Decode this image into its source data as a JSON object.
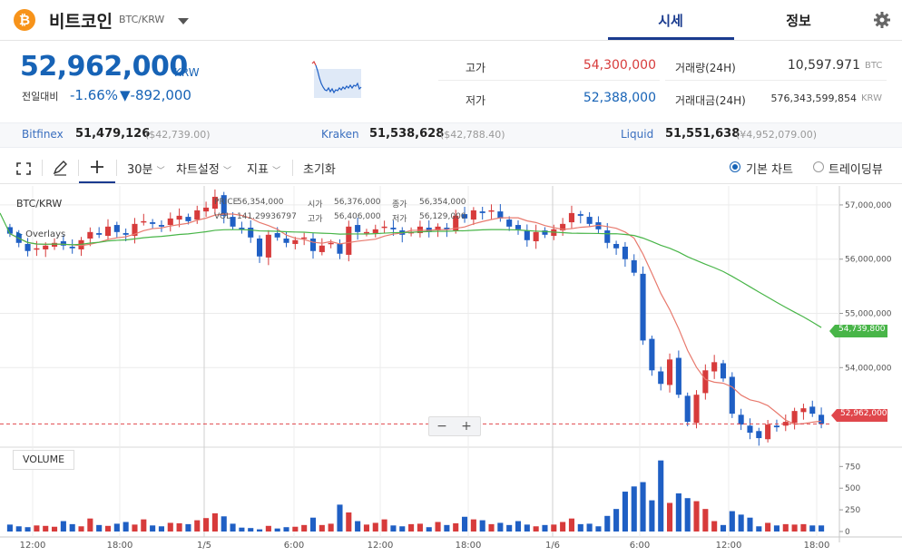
{
  "header": {
    "coin_symbol_glyph": "₿",
    "coin_name": "비트코인",
    "pair": "BTC/KRW",
    "tabs": [
      {
        "label": "시세",
        "active": true
      },
      {
        "label": "정보",
        "active": false
      }
    ]
  },
  "price": {
    "current": "52,962,000",
    "unit": "KRW",
    "change_label": "전일대비",
    "change_rate": "-1.66%",
    "change_amount": "▼-892,000"
  },
  "stats": {
    "high_label": "고가",
    "high": "54,300,000",
    "low_label": "저가",
    "low": "52,388,000",
    "volume_label": "거래량(24H)",
    "volume": "10,597.971",
    "volume_unit": "BTC",
    "value_label": "거래대금(24H)",
    "value": "576,343,599,854",
    "value_unit": "KRW"
  },
  "exchanges": [
    {
      "name": "Bitfinex",
      "price": "51,479,126",
      "sub": "($42,739.00)"
    },
    {
      "name": "Kraken",
      "price": "51,538,628",
      "sub": "($42,788.40)"
    },
    {
      "name": "Liquid",
      "price": "51,551,638",
      "sub": "(¥4,952,079.00)"
    }
  ],
  "toolbar": {
    "interval": "30분",
    "chart_settings": "차트설정",
    "indicators": "지표",
    "reset": "초기화",
    "basic_chart": "기본 차트",
    "tradingview": "트레이딩뷰"
  },
  "chart": {
    "symbol": "BTC/KRW",
    "overlays_label": "Overlays",
    "tooltip": {
      "price_label": "PRICE",
      "price": "56,354,000",
      "vol_label": "VOL",
      "vol": "141.29936797",
      "open_label": "시가",
      "open": "56,376,000",
      "close_label": "종가",
      "close": "56,354,000",
      "high_label": "고가",
      "high": "56,406,000",
      "low_label": "저가",
      "low": "56,129,000"
    },
    "volume_label": "VOLUME",
    "ma_long_value": "54,739,800",
    "last_price_value": "52,962,000",
    "zoom_out": "−",
    "zoom_in": "+"
  },
  "colors": {
    "up": "#d73b3b",
    "down": "#1f5fc4",
    "ma_short": "#e87a6e",
    "ma_long": "#48b548",
    "accent": "#1763b6"
  },
  "chart_data": {
    "type": "candlestick",
    "price_axis": {
      "ticks": [
        54000000,
        55000000,
        56000000,
        57000000
      ],
      "tick_labels": [
        "54,000,000",
        "55,000,000",
        "56,000,000",
        "57,000,000"
      ],
      "ylim": [
        52550000,
        57350000
      ]
    },
    "volume_axis": {
      "ticks": [
        0,
        250,
        500,
        750
      ],
      "tick_labels": [
        "0",
        "250",
        "500",
        "750"
      ],
      "ylim": [
        0,
        900
      ]
    },
    "x_tick_labels": [
      "12:00",
      "18:00",
      "1/5",
      "6:00",
      "12:00",
      "18:00",
      "1/6",
      "6:00",
      "12:00",
      "18:00"
    ],
    "candles_close": [
      56470000,
      56300000,
      56150000,
      56200000,
      56250000,
      56300000,
      56250000,
      56200000,
      56350000,
      56500000,
      56450000,
      56600000,
      56500000,
      56450000,
      56650000,
      56700000,
      56650000,
      56600000,
      56750000,
      56800000,
      56700000,
      56900000,
      56950000,
      57150000,
      56800000,
      56600000,
      56550000,
      56400000,
      56050000,
      56450000,
      56400000,
      56300000,
      56350000,
      56400000,
      56150000,
      56250000,
      56300000,
      56100000,
      56600000,
      56500000,
      56500000,
      56550000,
      56600000,
      56550000,
      56450000,
      56500000,
      56600000,
      56500000,
      56600000,
      56550000,
      56800000,
      56750000,
      56900000,
      56850000,
      56900000,
      56750000,
      56600000,
      56550000,
      56350000,
      56500000,
      56450000,
      56550000,
      56650000,
      56850000,
      56800000,
      56650000,
      56550000,
      56300000,
      56200000,
      56000000,
      55750000,
      54500000,
      53950000,
      53700000,
      54150000,
      53500000,
      53000000,
      53500000,
      53950000,
      54100000,
      53800000,
      53150000,
      52950000,
      52800000,
      52700000,
      52950000,
      52900000,
      53000000,
      53200000,
      53250000,
      53150000,
      52962000
    ],
    "volume": [
      80,
      60,
      50,
      70,
      65,
      55,
      120,
      85,
      60,
      150,
      75,
      65,
      90,
      110,
      80,
      140,
      70,
      60,
      100,
      95,
      85,
      130,
      155,
      210,
      175,
      90,
      45,
      40,
      25,
      65,
      35,
      50,
      55,
      75,
      160,
      75,
      90,
      310,
      220,
      120,
      80,
      100,
      140,
      70,
      60,
      85,
      90,
      50,
      110,
      75,
      95,
      170,
      140,
      130,
      85,
      100,
      75,
      120,
      80,
      60,
      75,
      80,
      110,
      150,
      85,
      90,
      60,
      180,
      260,
      460,
      520,
      570,
      360,
      820,
      330,
      440,
      385,
      350,
      260,
      120,
      75,
      235,
      195,
      160,
      60,
      100,
      70,
      85,
      80,
      85,
      70,
      70
    ],
    "ma_long_last": 54739800,
    "last_price": 52962000
  }
}
